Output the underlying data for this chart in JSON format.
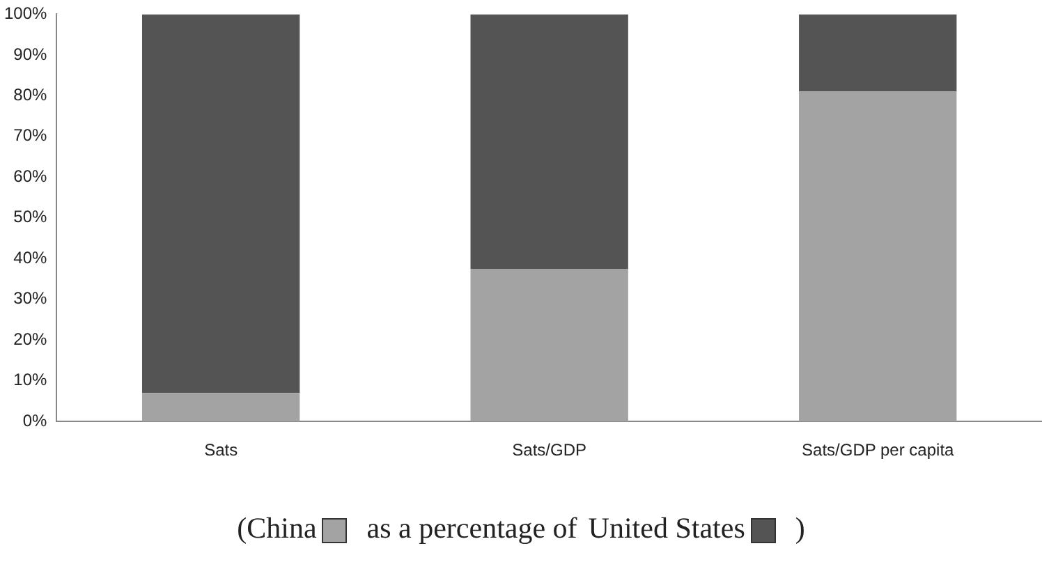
{
  "chart_data": {
    "type": "bar",
    "stacked": true,
    "categories": [
      "Sats",
      "Sats/GDP",
      "Sats/GDP per capita"
    ],
    "series": [
      {
        "name": "China",
        "color": "#a3a3a3",
        "values": [
          7,
          37.5,
          81
        ]
      },
      {
        "name": "United States",
        "color": "#545454",
        "values": [
          93,
          62.5,
          19
        ]
      }
    ],
    "ylim": [
      0,
      100
    ],
    "yticks": [
      {
        "value": 0,
        "label": "0%"
      },
      {
        "value": 10,
        "label": "10%"
      },
      {
        "value": 20,
        "label": "20%"
      },
      {
        "value": 30,
        "label": "30%"
      },
      {
        "value": 40,
        "label": "40%"
      },
      {
        "value": 50,
        "label": "50%"
      },
      {
        "value": 60,
        "label": "60%"
      },
      {
        "value": 70,
        "label": "70%"
      },
      {
        "value": 80,
        "label": "80%"
      },
      {
        "value": 90,
        "label": "90%"
      },
      {
        "value": 100,
        "label": "100%"
      }
    ],
    "grid": false,
    "legend": "bottom",
    "annotations": [
      "(",
      "as a percentage of",
      ")"
    ]
  }
}
